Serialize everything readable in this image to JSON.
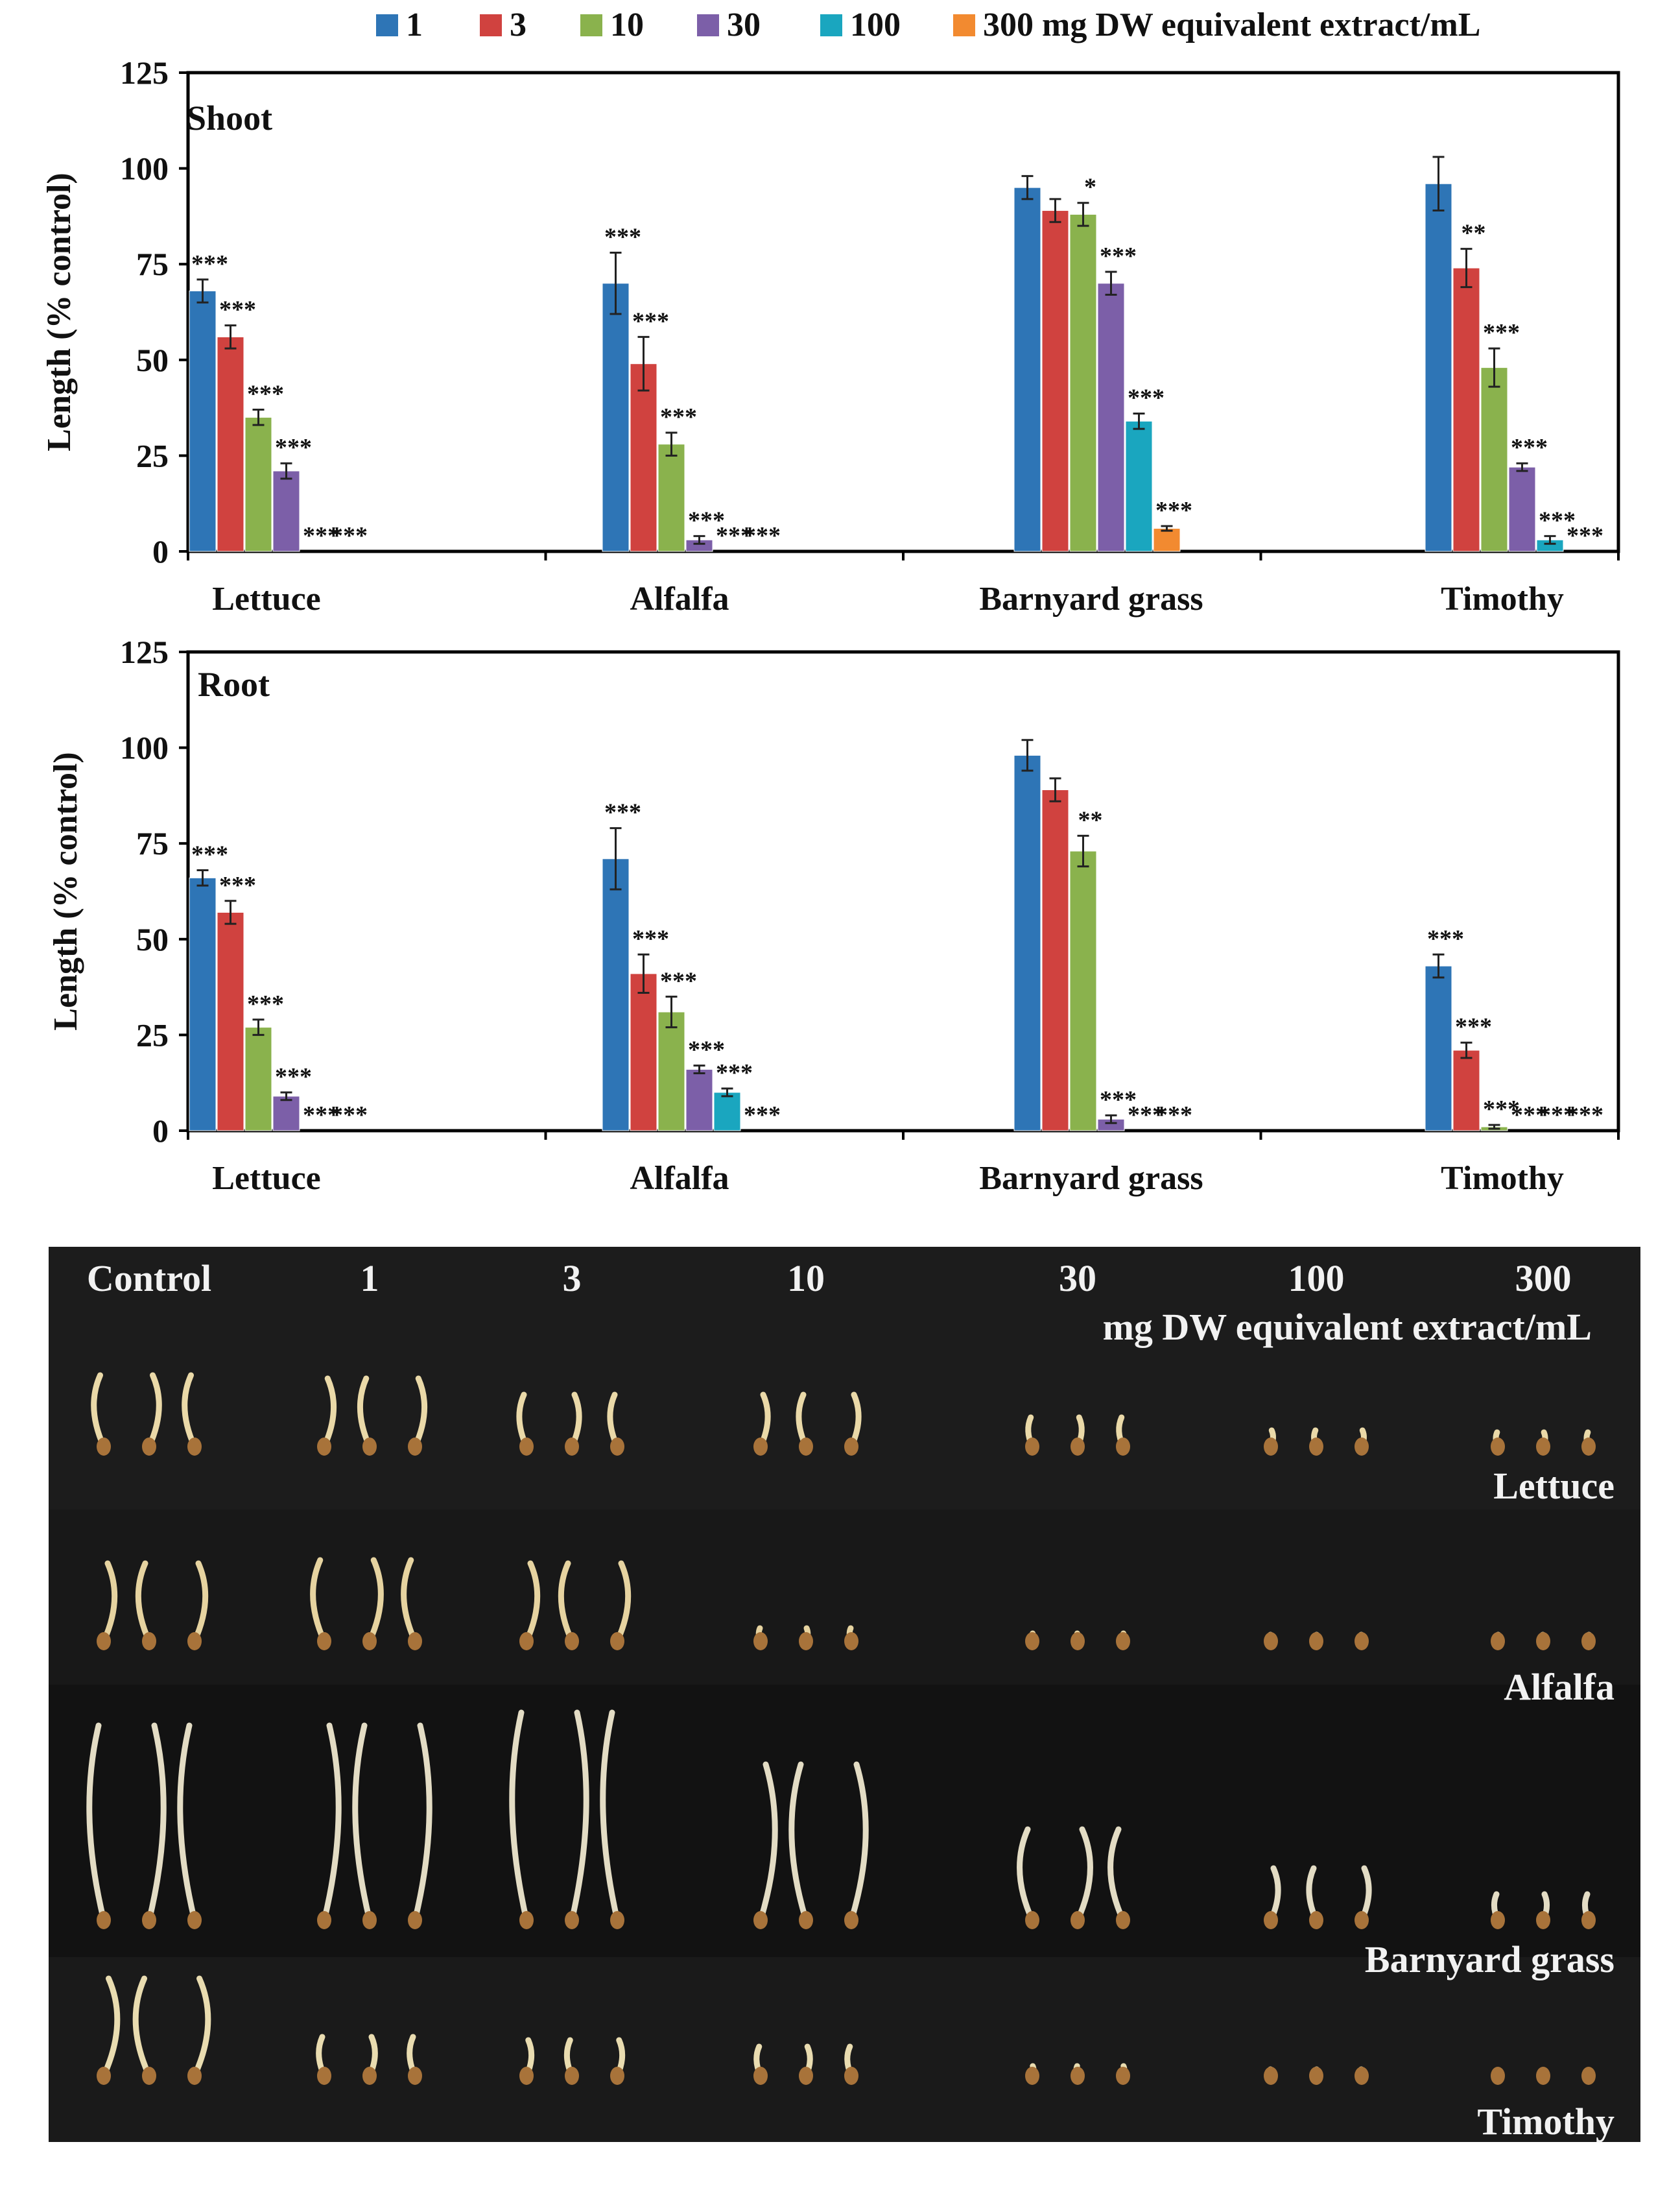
{
  "colors": {
    "1": "#2e75b6",
    "3": "#d0423f",
    "10": "#8ab24d",
    "30": "#7c5fa8",
    "100": "#1aa6bf",
    "300": "#f28a30"
  },
  "legend": {
    "items": [
      "1",
      "3",
      "10",
      "30",
      "100"
    ],
    "last": "300 mg DW equivalent extract/mL"
  },
  "chart_data": [
    {
      "type": "bar",
      "panel": "Shoot",
      "ylabel": "Length (% control)",
      "ylim": [
        0,
        125
      ],
      "yticks": [
        "0",
        "25",
        "50",
        "75",
        "100",
        "125"
      ],
      "categories": [
        "Lettuce",
        "Alfalfa",
        "Barnyard grass",
        "Timothy"
      ],
      "series": [
        {
          "name": "1",
          "values": [
            68,
            70,
            95,
            96
          ],
          "errors": [
            3,
            8,
            3,
            7
          ],
          "sig": [
            "***",
            "***",
            "",
            ""
          ]
        },
        {
          "name": "3",
          "values": [
            56,
            49,
            89,
            74
          ],
          "errors": [
            3,
            7,
            3,
            5
          ],
          "sig": [
            "***",
            "***",
            "",
            "**"
          ]
        },
        {
          "name": "10",
          "values": [
            35,
            28,
            88,
            48
          ],
          "errors": [
            2,
            3,
            3,
            5
          ],
          "sig": [
            "***",
            "***",
            "*",
            "***"
          ]
        },
        {
          "name": "30",
          "values": [
            21,
            3,
            70,
            22
          ],
          "errors": [
            2,
            1,
            3,
            1
          ],
          "sig": [
            "***",
            "***",
            "***",
            "***"
          ]
        },
        {
          "name": "100",
          "values": [
            0,
            0,
            34,
            3
          ],
          "errors": [
            0,
            0,
            2,
            1
          ],
          "sig": [
            "***",
            "***",
            "***",
            "***"
          ]
        },
        {
          "name": "300",
          "values": [
            0,
            0,
            6,
            0
          ],
          "errors": [
            0,
            0,
            0.6,
            0
          ],
          "sig": [
            "***",
            "***",
            "***",
            "***"
          ]
        }
      ]
    },
    {
      "type": "bar",
      "panel": "Root",
      "ylabel": "Length (% control)",
      "ylim": [
        0,
        125
      ],
      "yticks": [
        "0",
        "25",
        "50",
        "75",
        "100",
        "125"
      ],
      "categories": [
        "Lettuce",
        "Alfalfa",
        "Barnyard grass",
        "Timothy"
      ],
      "series": [
        {
          "name": "1",
          "values": [
            66,
            71,
            98,
            43
          ],
          "errors": [
            2,
            8,
            4,
            3
          ],
          "sig": [
            "***",
            "***",
            "",
            "***"
          ]
        },
        {
          "name": "3",
          "values": [
            57,
            41,
            89,
            21
          ],
          "errors": [
            3,
            5,
            3,
            2
          ],
          "sig": [
            "***",
            "***",
            "",
            "***"
          ]
        },
        {
          "name": "10",
          "values": [
            27,
            31,
            73,
            1
          ],
          "errors": [
            2,
            4,
            4,
            0.5
          ],
          "sig": [
            "***",
            "***",
            "**",
            "***"
          ]
        },
        {
          "name": "30",
          "values": [
            9,
            16,
            3,
            0
          ],
          "errors": [
            1,
            1,
            1,
            0
          ],
          "sig": [
            "***",
            "***",
            "***",
            "***"
          ]
        },
        {
          "name": "100",
          "values": [
            0,
            10,
            0,
            0
          ],
          "errors": [
            0,
            1,
            0,
            0
          ],
          "sig": [
            "***",
            "***",
            "***",
            "***"
          ]
        },
        {
          "name": "300",
          "values": [
            0,
            0,
            0,
            0
          ],
          "errors": [
            0,
            0,
            0,
            0
          ],
          "sig": [
            "***",
            "***",
            "***",
            "***"
          ]
        }
      ]
    }
  ],
  "photo": {
    "headers": [
      "Control",
      "1",
      "3",
      "10",
      "30",
      "100",
      "300"
    ],
    "unit": "mg DW equivalent  extract/mL",
    "rows": [
      "Lettuce",
      "Alfalfa",
      "Barnyard grass",
      "Timothy"
    ]
  }
}
